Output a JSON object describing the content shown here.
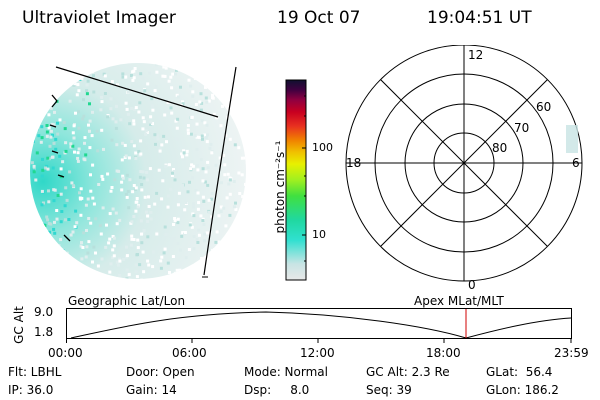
{
  "header": {
    "title": "Ultraviolet Imager",
    "date": "19 Oct 07",
    "time": "19:04:51 UT"
  },
  "colorbar": {
    "unit_label": "photon cm⁻²s⁻¹",
    "ticks": [
      "100",
      "10"
    ],
    "stops": [
      "#e8e8e8",
      "#c8e4e4",
      "#30e0d0",
      "#20d8a0",
      "#40e040",
      "#a0f020",
      "#e8f000",
      "#f0c000",
      "#f08000",
      "#e83020",
      "#c80020",
      "#900040",
      "#400040",
      "#101030"
    ]
  },
  "polar": {
    "clock_labels": [
      "12",
      "18",
      "6",
      "0"
    ],
    "lat_labels": [
      "60",
      "70",
      "80"
    ]
  },
  "timeline": {
    "left_label": "Geographic Lat/Lon",
    "right_label": "Apex MLat/MLT",
    "y_axis_label": "GC Alt",
    "y_ticks": [
      "9.0",
      "1.8"
    ],
    "x_ticks": [
      "00:00",
      "06:00",
      "12:00",
      "18:00",
      "23:59"
    ]
  },
  "footer": {
    "row1": [
      "Flt: LBHL",
      "Door: Open",
      "Mode: Normal",
      "GC Alt: 2.3 Re",
      "GLat:  56.4"
    ],
    "row2": [
      "IP: 36.0",
      "Gain: 14",
      "Dsp:     8.0",
      "Seq: 39",
      "GLon: 186.2"
    ]
  }
}
